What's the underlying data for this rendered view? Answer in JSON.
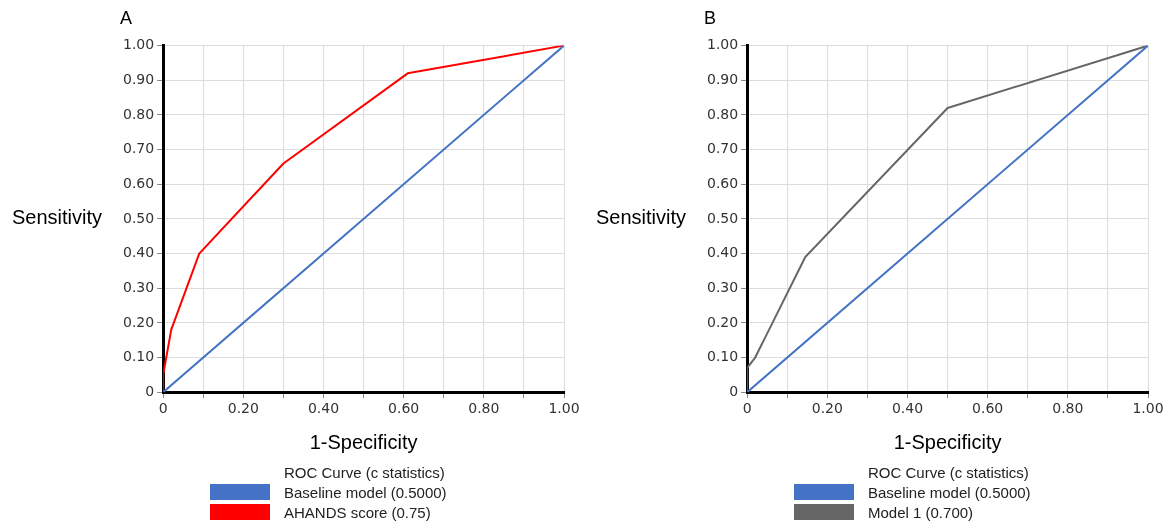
{
  "chart_data": [
    {
      "type": "line",
      "title": "A",
      "xlabel": "1-Specificity",
      "ylabel": "Sensitivity",
      "legend_title": "ROC Curve (c statistics)",
      "legend": "bottom",
      "grid": true,
      "marker": "none",
      "line_style": "solid",
      "xlim": [
        0,
        1
      ],
      "ylim": [
        0,
        1
      ],
      "xticks": [
        0,
        {
          "value": 0.1,
          "label": null
        },
        {
          "value": 0.2,
          "label": "0.20"
        },
        {
          "value": 0.3,
          "label": null
        },
        {
          "value": 0.4,
          "label": "0.40"
        },
        {
          "value": 0.5,
          "label": null
        },
        {
          "value": 0.6,
          "label": "0.60"
        },
        {
          "value": 0.7,
          "label": null
        },
        {
          "value": 0.8,
          "label": "0.80"
        },
        {
          "value": 0.9,
          "label": null
        },
        {
          "value": 1,
          "label": "1.00"
        }
      ],
      "yticks": [
        0,
        {
          "value": 0.1,
          "label": "0.10"
        },
        {
          "value": 0.2,
          "label": "0.20"
        },
        {
          "value": 0.3,
          "label": "0.30"
        },
        {
          "value": 0.4,
          "label": "0.40"
        },
        {
          "value": 0.5,
          "label": "0.50"
        },
        {
          "value": 0.6,
          "label": "0.60"
        },
        {
          "value": 0.7,
          "label": "0.70"
        },
        {
          "value": 0.8,
          "label": "0.80"
        },
        {
          "value": 0.9,
          "label": "0.90"
        },
        {
          "value": 1,
          "label": "1.00"
        }
      ],
      "series": [
        {
          "name": "Baseline model (0.5000)",
          "color": "#4472c4",
          "x": [
            0,
            1
          ],
          "values": [
            0,
            1
          ]
        },
        {
          "name": "AHANDS score (0.75)",
          "color": "#ff0000",
          "x": [
            0,
            0,
            0.02,
            0.09,
            0.3,
            0.61,
            1
          ],
          "values": [
            0,
            0.05,
            0.18,
            0.4,
            0.66,
            0.92,
            1
          ]
        }
      ]
    },
    {
      "type": "line",
      "title": "B",
      "xlabel": "1-Specificity",
      "ylabel": "Sensitivity",
      "legend_title": "ROC Curve (c statistics)",
      "legend": "bottom",
      "grid": true,
      "marker": "none",
      "line_style": "solid",
      "xlim": [
        0,
        1
      ],
      "ylim": [
        0,
        1
      ],
      "xticks": [
        0,
        {
          "value": 0.1,
          "label": null
        },
        {
          "value": 0.2,
          "label": "0.20"
        },
        {
          "value": 0.3,
          "label": null
        },
        {
          "value": 0.4,
          "label": "0.40"
        },
        {
          "value": 0.5,
          "label": null
        },
        {
          "value": 0.6,
          "label": "0.60"
        },
        {
          "value": 0.7,
          "label": null
        },
        {
          "value": 0.8,
          "label": "0.80"
        },
        {
          "value": 0.9,
          "label": null
        },
        {
          "value": 1,
          "label": "1.00"
        }
      ],
      "yticks": [
        0,
        {
          "value": 0.1,
          "label": "0.10"
        },
        {
          "value": 0.2,
          "label": "0.20"
        },
        {
          "value": 0.3,
          "label": "0.30"
        },
        {
          "value": 0.4,
          "label": "0.40"
        },
        {
          "value": 0.5,
          "label": "0.50"
        },
        {
          "value": 0.6,
          "label": "0.60"
        },
        {
          "value": 0.7,
          "label": "0.70"
        },
        {
          "value": 0.8,
          "label": "0.80"
        },
        {
          "value": 0.9,
          "label": "0.90"
        },
        {
          "value": 1,
          "label": "1.00"
        }
      ],
      "series": [
        {
          "name": "Baseline model (0.5000)",
          "color": "#4472c4",
          "x": [
            0,
            1
          ],
          "values": [
            0,
            1
          ]
        },
        {
          "name": "Model 1 (0.700)",
          "color": "#666666",
          "x": [
            0,
            0,
            0.02,
            0.145,
            0.5,
            1
          ],
          "values": [
            0,
            0.07,
            0.1,
            0.39,
            0.82,
            1
          ]
        }
      ]
    }
  ]
}
